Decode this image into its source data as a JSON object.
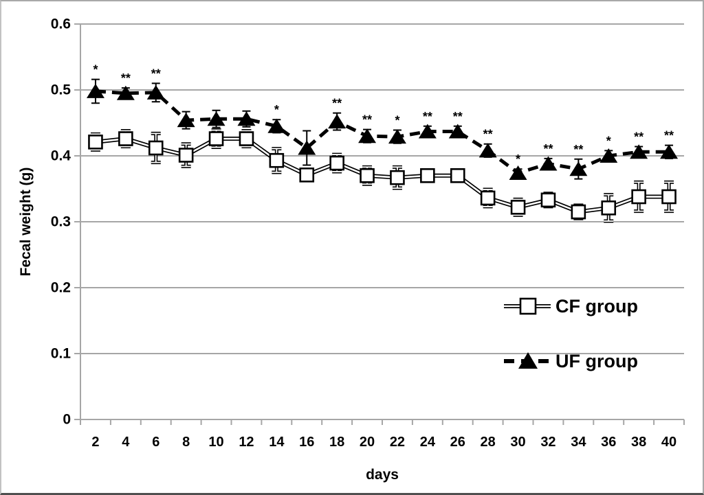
{
  "chart_data": {
    "type": "line",
    "title": "",
    "xlabel": "days",
    "ylabel": "Fecal weight (g)",
    "x": [
      2,
      4,
      6,
      8,
      10,
      12,
      14,
      16,
      18,
      20,
      22,
      24,
      26,
      28,
      30,
      32,
      34,
      36,
      38,
      40
    ],
    "ylim": [
      0,
      0.6
    ],
    "ytick_interval": 0.1,
    "ytick_labels": [
      "0",
      "0.1",
      "0.2",
      "0.3",
      "0.4",
      "0.5",
      "0.6"
    ],
    "grid": "horizontal",
    "legend_position": "right-middle",
    "series": [
      {
        "name": "CF group",
        "marker": "open-square",
        "line_style": "solid-outlined",
        "color": "#000000",
        "values": [
          0.421,
          0.426,
          0.412,
          0.401,
          0.426,
          0.426,
          0.393,
          0.371,
          0.389,
          0.37,
          0.367,
          0.37,
          0.37,
          0.336,
          0.322,
          0.333,
          0.315,
          0.321,
          0.338,
          0.338
        ],
        "errors": [
          0.012,
          0.012,
          0.022,
          0.017,
          0.013,
          0.012,
          0.018,
          0.008,
          0.013,
          0.013,
          0.016,
          0.008,
          0.008,
          0.013,
          0.012,
          0.01,
          0.01,
          0.02,
          0.022,
          0.022
        ]
      },
      {
        "name": "UF group",
        "marker": "filled-triangle",
        "line_style": "dashed",
        "color": "#000000",
        "values": [
          0.498,
          0.495,
          0.496,
          0.454,
          0.456,
          0.456,
          0.445,
          0.412,
          0.452,
          0.43,
          0.429,
          0.437,
          0.437,
          0.408,
          0.374,
          0.388,
          0.38,
          0.4,
          0.406,
          0.406
        ],
        "errors": [
          0.018,
          0.008,
          0.014,
          0.013,
          0.013,
          0.012,
          0.01,
          0.026,
          0.013,
          0.01,
          0.01,
          0.008,
          0.008,
          0.01,
          0.006,
          0.008,
          0.015,
          0.008,
          0.008,
          0.01
        ],
        "significance": [
          "*",
          "**",
          "**",
          "",
          "",
          "",
          "*",
          "",
          "**",
          "**",
          "*",
          "**",
          "**",
          "**",
          "*",
          "**",
          "**",
          "*",
          "**",
          "**"
        ]
      }
    ],
    "colors": {
      "series": "#000000",
      "grid": "#a6a6a6",
      "axis": "#a6a6a6",
      "text": "#000000",
      "background": "#ffffff"
    }
  }
}
